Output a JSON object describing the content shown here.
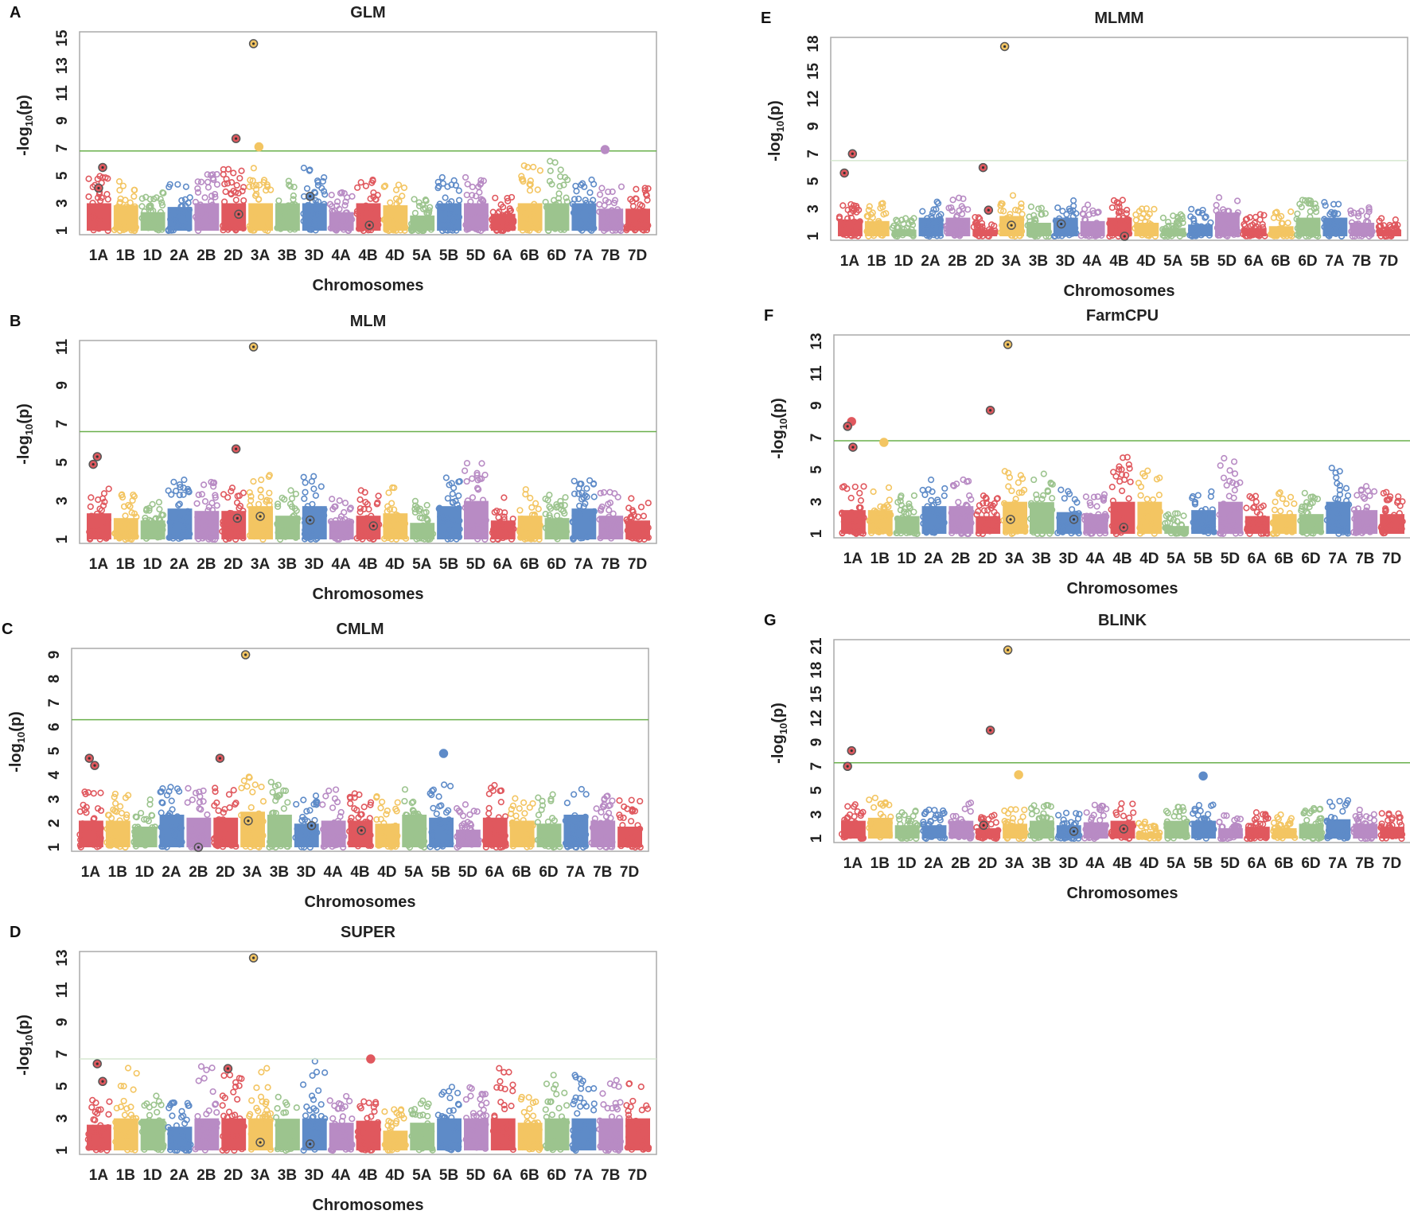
{
  "colors": [
    "#e0585e",
    "#f3c562",
    "#9cc48e",
    "#5e8bc8",
    "#b88bc4"
  ],
  "threshold_color": "#6ab04c",
  "chart_data": [
    {
      "id": "A",
      "type": "scatter",
      "title": "GLM",
      "xlabel": "Chromosomes",
      "ylabel": "-log10(p)",
      "yticks": [
        1,
        3,
        5,
        7,
        9,
        11,
        13,
        15
      ],
      "threshold": 6.8,
      "bg": [
        5.4,
        4.6,
        3.8,
        4.4,
        5.4,
        5.8,
        5.6,
        5,
        5.6,
        3.8,
        5.2,
        4.6,
        3.4,
        5,
        5.2,
        3.6,
        5.8,
        6.2,
        5,
        4.2,
        4.2
      ],
      "peaks": [
        {
          "chr": "3A",
          "y": 14.6,
          "hl": true
        },
        {
          "chr": "2D",
          "y": 7.7,
          "hl": true
        },
        {
          "chr": "3A",
          "y": 7.1
        },
        {
          "chr": "7B",
          "y": 6.9
        },
        {
          "chr": "1A",
          "y": 5.6,
          "hl": true
        },
        {
          "chr": "1A",
          "y": 4.1,
          "hl": true
        },
        {
          "chr": "3D",
          "y": 3.5,
          "hl": true
        },
        {
          "chr": "2D",
          "y": 2.2,
          "hl": true
        },
        {
          "chr": "4B",
          "y": 1.4,
          "hl": true
        }
      ]
    },
    {
      "id": "B",
      "type": "scatter",
      "title": "MLM",
      "xlabel": "Chromosomes",
      "ylabel": "-log10(p)",
      "yticks": [
        1,
        3,
        5,
        7,
        9,
        11
      ],
      "threshold": 6.6,
      "bg": [
        3.8,
        3.4,
        3.2,
        4.2,
        4,
        4,
        4.4,
        3.6,
        4.4,
        3.2,
        3.6,
        3.8,
        3,
        4.4,
        5,
        3.2,
        3.6,
        3.4,
        4.2,
        3.6,
        3.2
      ],
      "peaks": [
        {
          "chr": "3A",
          "y": 11.1,
          "hl": true
        },
        {
          "chr": "2D",
          "y": 5.7,
          "hl": true
        },
        {
          "chr": "1A",
          "y": 5.3,
          "hl": true
        },
        {
          "chr": "1A",
          "y": 4.9,
          "hl": true
        },
        {
          "chr": "2D",
          "y": 2.1,
          "hl": true
        },
        {
          "chr": "3A",
          "y": 2.2,
          "hl": true
        },
        {
          "chr": "3D",
          "y": 2,
          "hl": true
        },
        {
          "chr": "4B",
          "y": 1.7,
          "hl": true
        }
      ]
    },
    {
      "id": "C",
      "type": "scatter",
      "title": "CMLM",
      "xlabel": "Chromosomes",
      "ylabel": "-log10(p)",
      "yticks": [
        1,
        2,
        3,
        4,
        5,
        6,
        7,
        8,
        9
      ],
      "threshold": 6.3,
      "bg": [
        3.4,
        3.4,
        3,
        3.8,
        3.6,
        3.6,
        4,
        3.8,
        3.2,
        3.4,
        3.4,
        3.2,
        3.8,
        3.6,
        2.8,
        3.6,
        3.4,
        3.2,
        3.8,
        3.4,
        3
      ],
      "peaks": [
        {
          "chr": "3A",
          "y": 9.5,
          "hl": true
        },
        {
          "chr": "5B",
          "y": 4.9
        },
        {
          "chr": "1A",
          "y": 4.7,
          "hl": true
        },
        {
          "chr": "2D",
          "y": 4.7,
          "hl": true
        },
        {
          "chr": "1A",
          "y": 4.4,
          "hl": true
        },
        {
          "chr": "2B",
          "y": 1,
          "hl": true
        },
        {
          "chr": "3A",
          "y": 2.1,
          "hl": true
        },
        {
          "chr": "3D",
          "y": 1.9,
          "hl": true
        },
        {
          "chr": "4B",
          "y": 1.7,
          "hl": true
        }
      ]
    },
    {
      "id": "D",
      "type": "scatter",
      "title": "SUPER",
      "xlabel": "Chromosomes",
      "ylabel": "-log10(p)",
      "yticks": [
        1,
        3,
        5,
        7,
        9,
        11,
        13
      ],
      "threshold": 6.7,
      "bg": [
        4.2,
        6.6,
        4.8,
        4,
        6.4,
        6,
        6.6,
        4.8,
        6.6,
        4.4,
        4.6,
        3.6,
        4.4,
        5,
        5.2,
        6.2,
        4.4,
        6,
        6.2,
        5.8,
        5.6
      ],
      "peaks": [
        {
          "chr": "3A",
          "y": 13.3,
          "hl": true
        },
        {
          "chr": "4B",
          "y": 6.7
        },
        {
          "chr": "1A",
          "y": 6.4,
          "hl": true
        },
        {
          "chr": "2D",
          "y": 6.1,
          "hl": true
        },
        {
          "chr": "1A",
          "y": 5.3,
          "hl": true
        },
        {
          "chr": "3A",
          "y": 1.5,
          "hl": true
        },
        {
          "chr": "3D",
          "y": 1.4,
          "hl": true
        }
      ]
    },
    {
      "id": "E",
      "type": "scatter",
      "title": "MLMM",
      "xlabel": "Chromosomes",
      "ylabel": "-log10(p)",
      "yticks": [
        1,
        3,
        5,
        7,
        9,
        12,
        15,
        18
      ],
      "threshold": 6.5,
      "bg": [
        3.6,
        3.4,
        2.4,
        3.8,
        3.8,
        2.4,
        4,
        3.2,
        3.8,
        3.4,
        3.8,
        3.2,
        2.6,
        3,
        4.4,
        2.6,
        2.8,
        3.8,
        3.8,
        3.2,
        2.4
      ],
      "peaks": [
        {
          "chr": "3A",
          "y": 17.7,
          "hl": true
        },
        {
          "chr": "1A",
          "y": 7,
          "hl": true
        },
        {
          "chr": "2D",
          "y": 6,
          "hl": true
        },
        {
          "chr": "1A",
          "y": 5.6,
          "hl": true
        },
        {
          "chr": "2D",
          "y": 2.9,
          "hl": true
        },
        {
          "chr": "3A",
          "y": 1.8,
          "hl": true
        },
        {
          "chr": "3D",
          "y": 1.9,
          "hl": true
        },
        {
          "chr": "4B",
          "y": 1,
          "hl": true
        }
      ]
    },
    {
      "id": "F",
      "type": "scatter",
      "title": "FarmCPU",
      "xlabel": "Chromosomes",
      "ylabel": "-log10(p)",
      "yticks": [
        1,
        3,
        5,
        7,
        9,
        11,
        13
      ],
      "threshold": 6.8,
      "bg": [
        4,
        4,
        3.4,
        4.4,
        4.4,
        3.4,
        5,
        4.8,
        3.8,
        3.6,
        5.8,
        5,
        2.4,
        4,
        5.8,
        3.4,
        3.6,
        3.6,
        5.2,
        4,
        3.6
      ],
      "peaks": [
        {
          "chr": "3A",
          "y": 12.8,
          "hl": true
        },
        {
          "chr": "2D",
          "y": 8.7,
          "hl": true
        },
        {
          "chr": "1A",
          "y": 8
        },
        {
          "chr": "1A",
          "y": 7.7,
          "hl": true
        },
        {
          "chr": "1B",
          "y": 6.7
        },
        {
          "chr": "1A",
          "y": 6.4,
          "hl": true
        },
        {
          "chr": "3A",
          "y": 1.9,
          "hl": true
        },
        {
          "chr": "3D",
          "y": 1.9,
          "hl": true
        },
        {
          "chr": "4B",
          "y": 1.4,
          "hl": true
        }
      ]
    },
    {
      "id": "G",
      "type": "scatter",
      "title": "BLINK",
      "xlabel": "Chromosomes",
      "ylabel": "-log10(p)",
      "yticks": [
        1,
        3,
        5,
        7,
        9,
        12,
        15,
        18,
        21
      ],
      "threshold": 7.3,
      "bg": [
        4,
        4.4,
        3.4,
        3.4,
        4,
        3,
        3.6,
        4,
        3.4,
        3.8,
        4,
        2.4,
        4,
        4,
        3,
        3.2,
        3,
        3.6,
        4.2,
        3.6,
        3.2
      ],
      "peaks": [
        {
          "chr": "3A",
          "y": 20.5,
          "hl": true
        },
        {
          "chr": "2D",
          "y": 10.5,
          "hl": true
        },
        {
          "chr": "1A",
          "y": 8.3,
          "hl": true
        },
        {
          "chr": "1A",
          "y": 7,
          "hl": true
        },
        {
          "chr": "3A",
          "y": 6.3
        },
        {
          "chr": "5B",
          "y": 6.2
        },
        {
          "chr": "2D",
          "y": 2.1,
          "hl": true
        },
        {
          "chr": "3D",
          "y": 1.6,
          "hl": true
        },
        {
          "chr": "4B",
          "y": 1.8,
          "hl": true
        }
      ]
    }
  ],
  "chromosomes": [
    "1A",
    "1B",
    "1D",
    "2A",
    "2B",
    "2D",
    "3A",
    "3B",
    "3D",
    "4A",
    "4B",
    "4D",
    "5A",
    "5B",
    "5D",
    "6A",
    "6B",
    "6D",
    "7A",
    "7B",
    "7D"
  ]
}
